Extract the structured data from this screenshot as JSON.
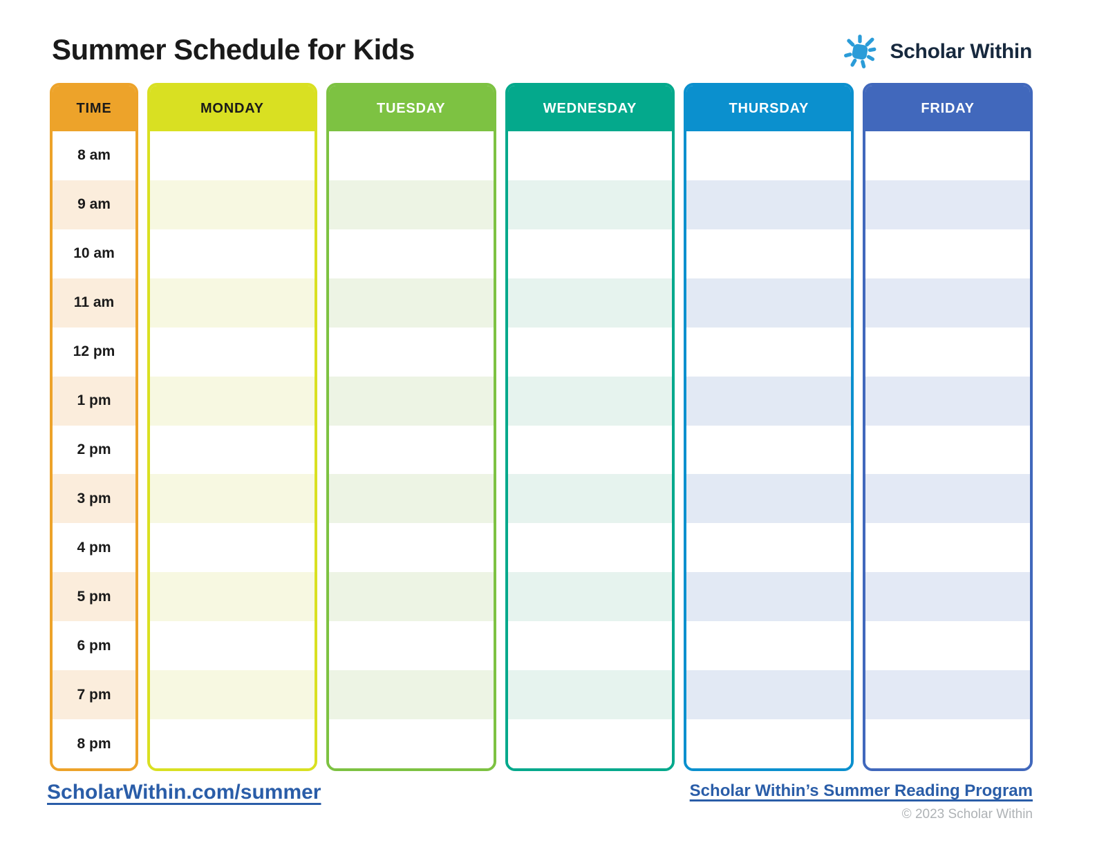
{
  "title": "Summer Schedule for Kids",
  "logo": {
    "brand": "Scholar Within",
    "sun_color": "#2b9cd8",
    "text_color": "#17293e"
  },
  "schedule": {
    "times": [
      "8 am",
      "9 am",
      "10 am",
      "11 am",
      "12 pm",
      "1 pm",
      "2 pm",
      "3 pm",
      "4 pm",
      "5 pm",
      "6 pm",
      "7 pm",
      "8 pm"
    ],
    "columns": [
      {
        "label": "TIME",
        "header_bg": "#eda32a",
        "header_text": "#1a1a1a",
        "stripe": "#fbeddc",
        "is_time": true
      },
      {
        "label": "MONDAY",
        "header_bg": "#d9e022",
        "header_text": "#1a1a1a",
        "stripe": "#f7f8e1",
        "is_time": false
      },
      {
        "label": "TUESDAY",
        "header_bg": "#7dc242",
        "header_text": "#ffffff",
        "stripe": "#edf4e4",
        "is_time": false
      },
      {
        "label": "WEDNESDAY",
        "header_bg": "#04a98c",
        "header_text": "#ffffff",
        "stripe": "#e6f3ee",
        "is_time": false
      },
      {
        "label": "THURSDAY",
        "header_bg": "#0b90ce",
        "header_text": "#ffffff",
        "stripe": "#e2e9f4",
        "is_time": false
      },
      {
        "label": "FRIDAY",
        "header_bg": "#4168bc",
        "header_text": "#ffffff",
        "stripe": "#e3e9f5",
        "is_time": false
      }
    ]
  },
  "footer": {
    "left_link": "ScholarWithin.com/summer",
    "right_link": "Scholar Within’s Summer Reading Program",
    "copyright": "© 2023 Scholar Within"
  }
}
